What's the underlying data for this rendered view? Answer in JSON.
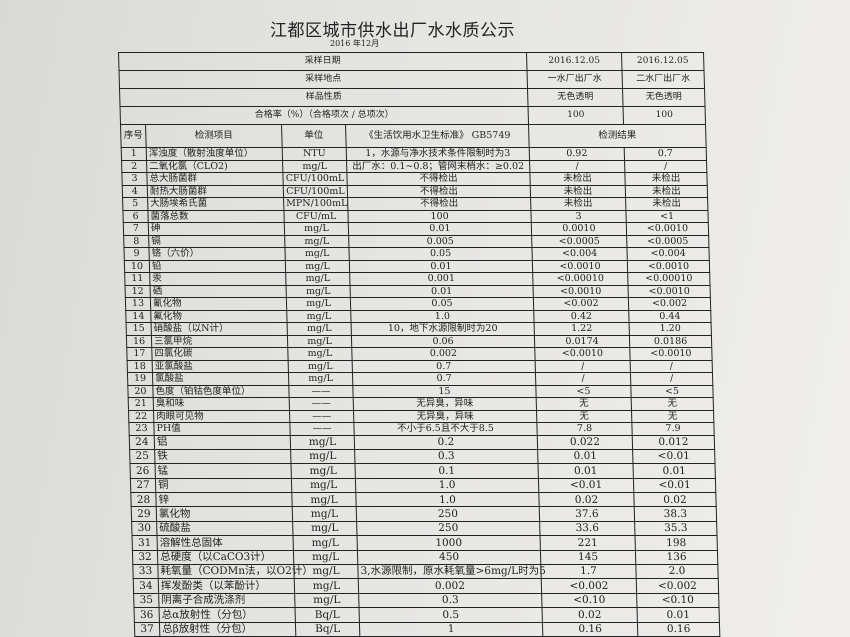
{
  "title": "江都区城市供水出厂水水质公示",
  "subtitle": "2016 年12月",
  "meta_rows": [
    {
      "label": "采样日期",
      "plant1": "2016.12.05",
      "plant2": "2016.12.05"
    },
    {
      "label": "采样地点",
      "plant1": "一水厂出厂水",
      "plant2": "二水厂出厂水"
    },
    {
      "label": "样品性质",
      "plant1": "无色透明",
      "plant2": "无色透明"
    },
    {
      "label": "合格率（%）（合格项次 / 总项次）",
      "plant1": "100",
      "plant2": "100"
    }
  ],
  "columns": {
    "seq": "序号",
    "item": "检测项目",
    "unit": "单位",
    "standard": "《生活饮用水卫生标准》 GB5749",
    "result": "检测结果"
  },
  "rows": [
    [
      "1",
      "浑浊度（散射浊度单位）",
      "NTU",
      "1，水源与净水技术条件限制时为3",
      "0.92",
      "0.7"
    ],
    [
      "2",
      "二氧化氯（CLO2)",
      "mg/L",
      "出厂水：0.1~0.8；管网末梢水：≥0.02",
      "/",
      "/"
    ],
    [
      "3",
      "总大肠菌群",
      "CFU/100mL",
      "不得检出",
      "未检出",
      "未检出"
    ],
    [
      "4",
      "耐热大肠菌群",
      "CFU/100mL",
      "不得检出",
      "未检出",
      "未检出"
    ],
    [
      "5",
      "大肠埃希氏菌",
      "MPN/100mL",
      "不得检出",
      "未检出",
      "未检出"
    ],
    [
      "6",
      "菌落总数",
      "CFU/mL",
      "100",
      "3",
      "<1"
    ],
    [
      "7",
      "砷",
      "mg/L",
      "0.01",
      "0.0010",
      "<0.0010"
    ],
    [
      "8",
      "镉",
      "mg/L",
      "0.005",
      "<0.0005",
      "<0.0005"
    ],
    [
      "9",
      "铬（六价）",
      "mg/L",
      "0.05",
      "<0.004",
      "<0.004"
    ],
    [
      "10",
      "铅",
      "mg/L",
      "0.01",
      "<0.0010",
      "<0.0010"
    ],
    [
      "11",
      "汞",
      "mg/L",
      "0.001",
      "<0.00010",
      "<0.00010"
    ],
    [
      "12",
      "硒",
      "mg/L",
      "0.01",
      "<0.0010",
      "<0.0010"
    ],
    [
      "13",
      "氰化物",
      "mg/L",
      "0.05",
      "<0.002",
      "<0.002"
    ],
    [
      "14",
      "氟化物",
      "mg/L",
      "1.0",
      "0.42",
      "0.44"
    ],
    [
      "15",
      "硝酸盐（以N计）",
      "mg/L",
      "10，地下水源限制时为20",
      "1.22",
      "1.20"
    ],
    [
      "16",
      "三氯甲烷",
      "mg/L",
      "0.06",
      "0.0174",
      "0.0186"
    ],
    [
      "17",
      "四氯化碳",
      "mg/L",
      "0.002",
      "<0.0010",
      "<0.0010"
    ],
    [
      "18",
      "亚氯酸盐",
      "mg/L",
      "0.7",
      "/",
      "/"
    ],
    [
      "19",
      "氯酸盐",
      "mg/L",
      "0.7",
      "/",
      "/"
    ],
    [
      "20",
      "色度（铂钴色度单位）",
      "——",
      "15",
      "<5",
      "<5"
    ],
    [
      "21",
      "臭和味",
      "——",
      "无异臭，异味",
      "无",
      "无"
    ],
    [
      "22",
      "肉眼可见物",
      "——",
      "无异臭，异味",
      "无",
      "无"
    ],
    [
      "23",
      "PH值",
      "——",
      "不小于6.5且不大于8.5",
      "7.8",
      "7.9"
    ],
    [
      "24",
      "铝",
      "mg/L",
      "0.2",
      "0.022",
      "0.012"
    ],
    [
      "25",
      "铁",
      "mg/L",
      "0.3",
      "0.01",
      "<0.01"
    ],
    [
      "26",
      "锰",
      "mg/L",
      "0.1",
      "0.01",
      "0.01"
    ],
    [
      "27",
      "铜",
      "mg/L",
      "1.0",
      "<0.01",
      "<0.01"
    ],
    [
      "28",
      "锌",
      "mg/L",
      "1.0",
      "0.02",
      "0.02"
    ],
    [
      "29",
      "氯化物",
      "mg/L",
      "250",
      "37.6",
      "38.3"
    ],
    [
      "30",
      "硫酸盐",
      "mg/L",
      "250",
      "33.6",
      "35.3"
    ],
    [
      "31",
      "溶解性总固体",
      "mg/L",
      "1000",
      "221",
      "198"
    ],
    [
      "32",
      "总硬度（以CaCO3计）",
      "mg/L",
      "450",
      "145",
      "136"
    ],
    [
      "33",
      "耗氧量（CODMn法，以O2计）",
      "mg/L",
      "3,水源限制，原水耗氧量>6mg/L时为5",
      "1.7",
      "2.0"
    ],
    [
      "34",
      "挥发酚类（以苯酚计）",
      "mg/L",
      "0.002",
      "<0.002",
      "<0.002"
    ],
    [
      "35",
      "阴离子合成洗涤剂",
      "mg/L",
      "0.3",
      "<0.10",
      "<0.10"
    ],
    [
      "36",
      "总α放射性（分包）",
      "Bq/L",
      "0.5",
      "0.02",
      "0.01"
    ],
    [
      "37",
      "总β放射性（分包）",
      "Bq/L",
      "1",
      "0.16",
      "0.16"
    ]
  ]
}
